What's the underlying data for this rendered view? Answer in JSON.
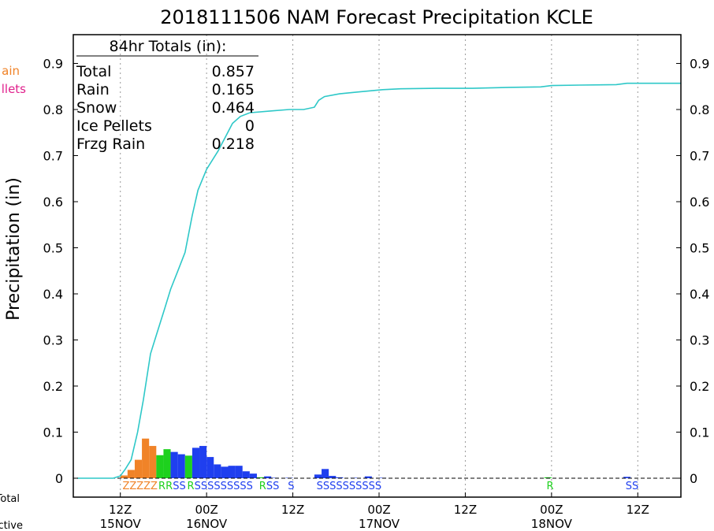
{
  "chart_data": {
    "type": "bar+line",
    "title": "2018111506 NAM Forecast Precipitation KCLE",
    "ylabel": "Precipitation  (in)",
    "ylim": [
      0,
      0.95
    ],
    "y_ticks": [
      0,
      0.1,
      0.2,
      0.3,
      0.4,
      0.5,
      0.6,
      0.7,
      0.8,
      0.9
    ],
    "y_tick_labels": [
      "0",
      "0.1",
      "0.2",
      "0.3",
      "0.4",
      "0.5",
      "0.6",
      "0.7",
      "0.8",
      "0.9"
    ],
    "x_unit": "forecast hour",
    "xlim": [
      0,
      84
    ],
    "x_ticks": [
      {
        "hour": 6,
        "time": "12Z",
        "date": "15NOV"
      },
      {
        "hour": 18,
        "time": "00Z",
        "date": "16NOV"
      },
      {
        "hour": 30,
        "time": "12Z",
        "date": ""
      },
      {
        "hour": 42,
        "time": "00Z",
        "date": "17NOV"
      },
      {
        "hour": 54,
        "time": "12Z",
        "date": ""
      },
      {
        "hour": 66,
        "time": "00Z",
        "date": "18NOV"
      },
      {
        "hour": 78,
        "time": "12Z",
        "date": ""
      }
    ],
    "grid": "vertical dotted",
    "colors": {
      "snow": "#1f3fef",
      "rain": "#1ed11e",
      "frzg_rain": "#f08328",
      "total": "#2ec8c8",
      "ice_pellets": "#e0208c"
    },
    "legend_left": [
      {
        "text": "ain",
        "color": "#f08328"
      },
      {
        "text": "llets",
        "color": "#e0208c"
      },
      {
        "text": "g Total",
        "color": "#000000"
      },
      {
        "text": "ctive",
        "color": "#000000"
      }
    ],
    "totals_box": {
      "header": "84hr Totals (in):",
      "rows": [
        {
          "label": "Total",
          "value": "0.857"
        },
        {
          "label": "Rain",
          "value": "0.165"
        },
        {
          "label": "Snow",
          "value": "0.464"
        },
        {
          "label": "Ice Pellets",
          "value": "0"
        },
        {
          "label": "Frzg Rain",
          "value": "0.218"
        }
      ]
    },
    "hourly_bars": [
      {
        "hour": 6.5,
        "value": 0.006,
        "type": "frzg_rain"
      },
      {
        "hour": 7.5,
        "value": 0.018,
        "type": "frzg_rain"
      },
      {
        "hour": 8.5,
        "value": 0.04,
        "type": "frzg_rain"
      },
      {
        "hour": 9.5,
        "value": 0.086,
        "type": "frzg_rain"
      },
      {
        "hour": 10.5,
        "value": 0.07,
        "type": "frzg_rain"
      },
      {
        "hour": 11.5,
        "value": 0.05,
        "type": "rain"
      },
      {
        "hour": 12.5,
        "value": 0.063,
        "type": "rain"
      },
      {
        "hour": 13.5,
        "value": 0.057,
        "type": "snow"
      },
      {
        "hour": 14.5,
        "value": 0.052,
        "type": "snow"
      },
      {
        "hour": 15.5,
        "value": 0.049,
        "type": "rain"
      },
      {
        "hour": 16.5,
        "value": 0.066,
        "type": "snow"
      },
      {
        "hour": 17.5,
        "value": 0.07,
        "type": "snow"
      },
      {
        "hour": 18.5,
        "value": 0.046,
        "type": "snow"
      },
      {
        "hour": 19.5,
        "value": 0.03,
        "type": "snow"
      },
      {
        "hour": 20.5,
        "value": 0.025,
        "type": "snow"
      },
      {
        "hour": 21.5,
        "value": 0.027,
        "type": "snow"
      },
      {
        "hour": 22.5,
        "value": 0.027,
        "type": "snow"
      },
      {
        "hour": 23.5,
        "value": 0.015,
        "type": "snow"
      },
      {
        "hour": 24.5,
        "value": 0.01,
        "type": "snow"
      },
      {
        "hour": 25.5,
        "value": 0.002,
        "type": "rain"
      },
      {
        "hour": 26.5,
        "value": 0.004,
        "type": "snow"
      },
      {
        "hour": 27.5,
        "value": 0.001,
        "type": "snow"
      },
      {
        "hour": 29.5,
        "value": 0.001,
        "type": "snow"
      },
      {
        "hour": 33.5,
        "value": 0.008,
        "type": "snow"
      },
      {
        "hour": 34.5,
        "value": 0.02,
        "type": "snow"
      },
      {
        "hour": 35.5,
        "value": 0.005,
        "type": "snow"
      },
      {
        "hour": 36.5,
        "value": 0.002,
        "type": "snow"
      },
      {
        "hour": 38.5,
        "value": 0.001,
        "type": "snow"
      },
      {
        "hour": 40.5,
        "value": 0.004,
        "type": "snow"
      },
      {
        "hour": 42.5,
        "value": 0.001,
        "type": "snow"
      },
      {
        "hour": 65.5,
        "value": 0.002,
        "type": "rain"
      },
      {
        "hour": 76.5,
        "value": 0.003,
        "type": "snow"
      }
    ],
    "total_series": {
      "name": "Total",
      "points": [
        [
          0,
          0
        ],
        [
          5,
          0
        ],
        [
          6,
          0.005
        ],
        [
          6.7,
          0.02
        ],
        [
          7.5,
          0.04
        ],
        [
          8.4,
          0.1
        ],
        [
          9.2,
          0.17
        ],
        [
          10.2,
          0.27
        ],
        [
          11,
          0.31
        ],
        [
          12.2,
          0.37
        ],
        [
          13,
          0.41
        ],
        [
          14,
          0.45
        ],
        [
          15,
          0.49
        ],
        [
          16,
          0.57
        ],
        [
          16.8,
          0.625
        ],
        [
          18,
          0.67
        ],
        [
          19.6,
          0.71
        ],
        [
          20.6,
          0.74
        ],
        [
          21.6,
          0.77
        ],
        [
          22.7,
          0.785
        ],
        [
          24,
          0.793
        ],
        [
          27,
          0.797
        ],
        [
          29.5,
          0.8
        ],
        [
          31.5,
          0.8
        ],
        [
          33,
          0.805
        ],
        [
          33.6,
          0.82
        ],
        [
          34.4,
          0.828
        ],
        [
          36.5,
          0.834
        ],
        [
          39,
          0.838
        ],
        [
          42.5,
          0.843
        ],
        [
          45,
          0.845
        ],
        [
          50,
          0.846
        ],
        [
          55,
          0.846
        ],
        [
          60,
          0.848
        ],
        [
          64.5,
          0.849
        ],
        [
          66,
          0.852
        ],
        [
          70,
          0.853
        ],
        [
          75,
          0.854
        ],
        [
          76.5,
          0.857
        ],
        [
          84,
          0.857
        ]
      ]
    },
    "ptype_strings": [
      {
        "hour": 6.3,
        "text": "ZZZZZ",
        "color": "#f08328"
      },
      {
        "hour": 11.3,
        "text": "RR",
        "color": "#1ed11e"
      },
      {
        "hour": 13.3,
        "text": "SS",
        "color": "#1f3fef"
      },
      {
        "hour": 15.3,
        "text": "R",
        "color": "#1ed11e"
      },
      {
        "hour": 16.3,
        "text": "SSSSSSSSS",
        "color": "#1f3fef"
      },
      {
        "hour": 25.3,
        "text": "R",
        "color": "#1ed11e"
      },
      {
        "hour": 26.3,
        "text": "SS",
        "color": "#1f3fef"
      },
      {
        "hour": 29.3,
        "text": "S",
        "color": "#1f3fef"
      },
      {
        "hour": 33.3,
        "text": "SSSSSSSSSS",
        "color": "#1f3fef"
      },
      {
        "hour": 65.3,
        "text": "R",
        "color": "#1ed11e"
      },
      {
        "hour": 76.3,
        "text": "SS",
        "color": "#1f3fef"
      }
    ]
  }
}
